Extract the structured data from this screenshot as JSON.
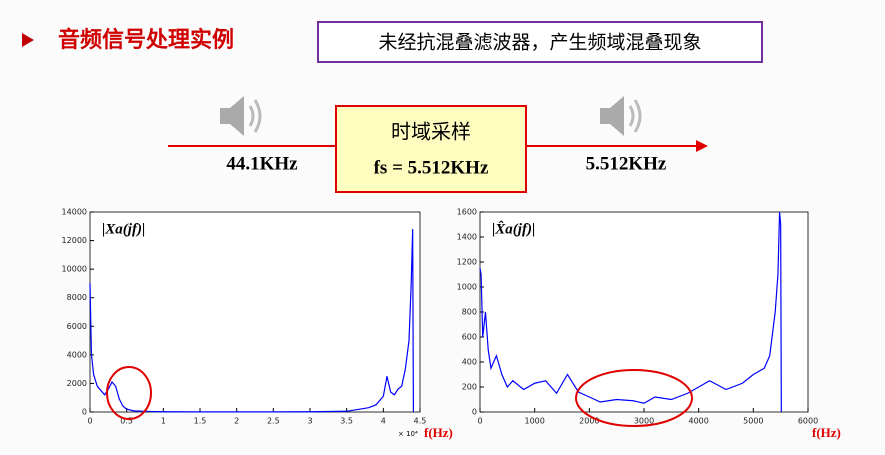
{
  "header": {
    "title": "音频信号处理实例",
    "note": "未经抗混叠滤波器，产生频域混叠现象"
  },
  "diagram": {
    "input_rate": "44.1KHz",
    "block_title": "时域采样",
    "block_formula": "fs = 5.512KHz",
    "output_rate": "5.512KHz"
  },
  "chart_data": [
    {
      "type": "line",
      "y_label": "|Xa(jf)|",
      "x_label": "f(Hz)",
      "x_scale_label": "× 10⁴",
      "color": "#0000ff",
      "x": [
        0,
        0.02,
        0.05,
        0.1,
        0.15,
        0.2,
        0.25,
        0.3,
        0.35,
        0.4,
        0.45,
        0.5,
        0.6,
        0.8,
        1.0,
        1.5,
        2.0,
        2.5,
        3.0,
        3.5,
        3.8,
        3.9,
        4.0,
        4.05,
        4.1,
        4.15,
        4.2,
        4.25,
        4.3,
        4.35,
        4.38,
        4.4,
        4.41
      ],
      "values": [
        9000,
        4000,
        2600,
        1800,
        1500,
        1200,
        1600,
        2100,
        1800,
        900,
        400,
        200,
        80,
        40,
        20,
        10,
        10,
        10,
        20,
        50,
        300,
        500,
        1100,
        2500,
        1400,
        1200,
        1600,
        1800,
        3000,
        5000,
        9000,
        12800,
        0
      ],
      "xlim": [
        0,
        4.5
      ],
      "xticks": [
        0,
        0.5,
        1,
        1.5,
        2,
        2.5,
        3,
        3.5,
        4,
        4.5
      ],
      "ylim": [
        0,
        14000
      ],
      "yticks": [
        0,
        2000,
        4000,
        6000,
        8000,
        10000,
        12000,
        14000
      ]
    },
    {
      "type": "line",
      "y_label": "|X̂a(jf)|",
      "x_label": "f(Hz)",
      "color": "#0000ff",
      "x": [
        0,
        20,
        50,
        100,
        150,
        200,
        300,
        400,
        500,
        600,
        800,
        1000,
        1200,
        1400,
        1600,
        1800,
        2000,
        2200,
        2500,
        2800,
        3000,
        3200,
        3500,
        3800,
        4000,
        4200,
        4500,
        4800,
        5000,
        5200,
        5300,
        5400,
        5450,
        5480,
        5500,
        5512
      ],
      "values": [
        1150,
        1100,
        600,
        800,
        500,
        350,
        450,
        300,
        200,
        250,
        180,
        230,
        250,
        150,
        300,
        160,
        120,
        80,
        100,
        90,
        70,
        120,
        100,
        150,
        200,
        250,
        180,
        230,
        300,
        350,
        450,
        800,
        1100,
        1600,
        1500,
        0
      ],
      "xlim": [
        0,
        6000
      ],
      "xticks": [
        0,
        1000,
        2000,
        3000,
        4000,
        5000,
        6000
      ],
      "ylim": [
        0,
        1600
      ],
      "yticks": [
        0,
        200,
        400,
        600,
        800,
        1000,
        1200,
        1400,
        1600
      ]
    }
  ]
}
